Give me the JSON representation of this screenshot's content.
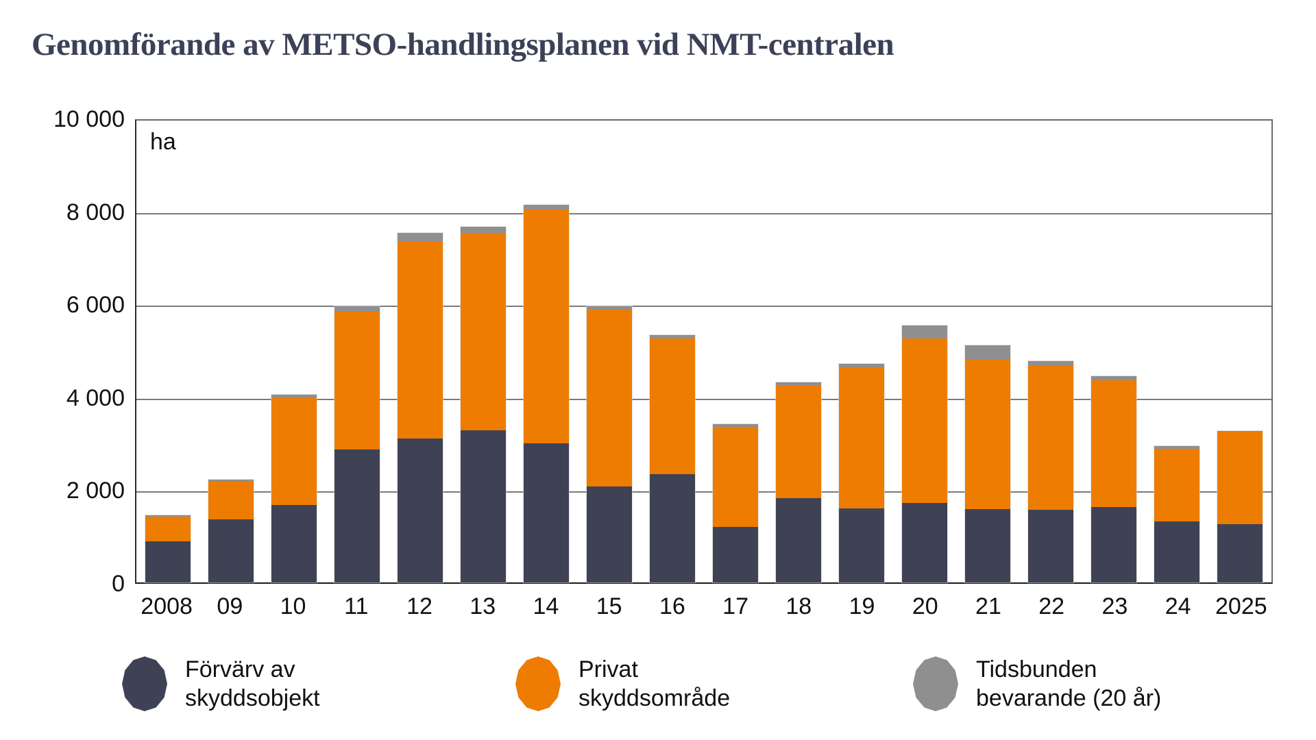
{
  "title": "Genomförande av METSO-handlingsplanen vid NMT-centralen",
  "unit_label": "ha",
  "colors": {
    "navy": "#3f4255",
    "orange": "#ee7c00",
    "gray": "#8f8f8f",
    "title_text": "#3d4157",
    "axis_text": "#111111",
    "gridline": "#7a7a7a"
  },
  "y_axis": {
    "tick_labels": [
      "10 000",
      "8 000",
      "6 000",
      "4 000",
      "2 000",
      "0"
    ],
    "tick_values": [
      10000,
      8000,
      6000,
      4000,
      2000,
      0
    ],
    "max": 10000
  },
  "legend": {
    "items": [
      {
        "lines": [
          "Förvärv av",
          "skyddsobjekt"
        ],
        "color_key": "navy"
      },
      {
        "lines": [
          "Privat",
          "skyddsområde"
        ],
        "color_key": "orange"
      },
      {
        "lines": [
          "Tidsbunden",
          "bevarande (20 år)"
        ],
        "color_key": "gray"
      }
    ]
  },
  "chart_data": {
    "type": "bar",
    "stacked": true,
    "title": "Genomförande av METSO-handlingsplanen vid NMT-centralen",
    "ylabel": "ha",
    "ylim": [
      0,
      10000
    ],
    "grid": true,
    "legend_position": "bottom",
    "categories": [
      "2008",
      "09",
      "10",
      "11",
      "12",
      "13",
      "14",
      "15",
      "16",
      "17",
      "18",
      "19",
      "20",
      "21",
      "22",
      "23",
      "24",
      "2025"
    ],
    "series": [
      {
        "name": "Förvärv av skyddsobjekt",
        "color_key": "navy",
        "values": [
          890,
          1360,
          1670,
          2860,
          3100,
          3280,
          3000,
          2070,
          2330,
          1200,
          1810,
          1590,
          1710,
          1580,
          1565,
          1630,
          1310,
          1260
        ]
      },
      {
        "name": "Privat skyddsområde",
        "color_key": "orange",
        "values": [
          530,
          820,
          2300,
          2970,
          4250,
          4240,
          5020,
          3800,
          2925,
          2155,
          2420,
          3030,
          3535,
          3220,
          3100,
          2725,
          1570,
          2000
        ]
      },
      {
        "name": "Tidsbunden bevarande (20 år)",
        "color_key": "gray",
        "values": [
          30,
          30,
          80,
          120,
          180,
          140,
          100,
          80,
          75,
          45,
          80,
          80,
          285,
          310,
          95,
          85,
          50,
          0
        ]
      }
    ],
    "totals": [
      1450,
      2210,
      4050,
      5950,
      7530,
      7660,
      8120,
      5950,
      5330,
      3400,
      4310,
      4700,
      5530,
      5110,
      4760,
      4440,
      2930,
      3260
    ]
  }
}
